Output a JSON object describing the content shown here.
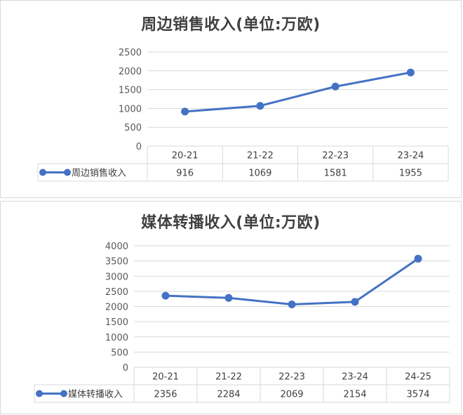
{
  "chart_data": [
    {
      "type": "line",
      "title": "周边销售收入(单位:万欧)",
      "categories": [
        "20-21",
        "21-22",
        "22-23",
        "23-24"
      ],
      "series": [
        {
          "name": "周边销售收入",
          "values": [
            916,
            1069,
            1581,
            1955
          ]
        }
      ],
      "ylim": [
        0,
        2500
      ],
      "yticks": [
        0,
        500,
        1000,
        1500,
        2000,
        2500
      ],
      "grid": true,
      "legend": "data-table-left",
      "color": "#4472c4"
    },
    {
      "type": "line",
      "title": "媒体转播收入(单位:万欧)",
      "categories": [
        "20-21",
        "21-22",
        "22-23",
        "23-24",
        "24-25"
      ],
      "series": [
        {
          "name": "媒体转播收入",
          "values": [
            2356,
            2284,
            2069,
            2154,
            3574
          ]
        }
      ],
      "ylim": [
        0,
        4000
      ],
      "yticks": [
        0,
        500,
        1000,
        1500,
        2000,
        2500,
        3000,
        3500,
        4000
      ],
      "grid": true,
      "legend": "data-table-left",
      "color": "#4472c4"
    }
  ]
}
